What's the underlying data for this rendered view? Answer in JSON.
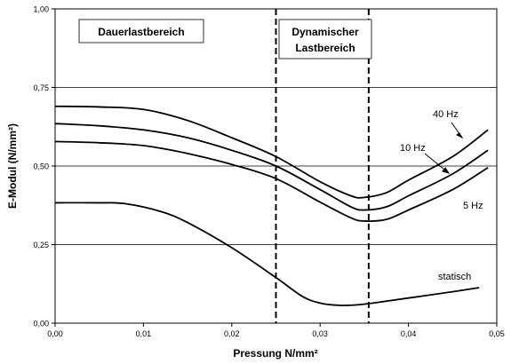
{
  "chart_data": {
    "type": "line",
    "xlabel": "Pressung N/mm²",
    "ylabel": "E-Modul (N/mm²)",
    "xlim": [
      0.0,
      0.05
    ],
    "ylim": [
      0.0,
      1.0
    ],
    "x_ticks": [
      0.0,
      0.01,
      0.02,
      0.03,
      0.04,
      0.05
    ],
    "x_tick_labels": [
      "0,00",
      "0,01",
      "0,02",
      "0,03",
      "0,04",
      "0,05"
    ],
    "y_ticks": [
      0.0,
      0.25,
      0.5,
      0.75,
      1.0
    ],
    "y_tick_labels": [
      "0,00",
      "0,25",
      "0,50",
      "0,75",
      "1,00"
    ],
    "grid": "horizontal",
    "series": [
      {
        "name": "40 Hz",
        "x": [
          0.0,
          0.005,
          0.01,
          0.015,
          0.02,
          0.025,
          0.03,
          0.0335,
          0.035,
          0.0375,
          0.04,
          0.045,
          0.049
        ],
        "y": [
          0.69,
          0.688,
          0.68,
          0.645,
          0.59,
          0.53,
          0.45,
          0.405,
          0.4,
          0.415,
          0.455,
          0.53,
          0.615
        ]
      },
      {
        "name": "10 Hz",
        "x": [
          0.0,
          0.005,
          0.01,
          0.015,
          0.02,
          0.025,
          0.03,
          0.0335,
          0.035,
          0.0375,
          0.04,
          0.045,
          0.049
        ],
        "y": [
          0.635,
          0.628,
          0.615,
          0.59,
          0.55,
          0.5,
          0.425,
          0.37,
          0.36,
          0.37,
          0.405,
          0.475,
          0.55
        ]
      },
      {
        "name": "5 Hz",
        "x": [
          0.0,
          0.005,
          0.01,
          0.015,
          0.02,
          0.025,
          0.03,
          0.0335,
          0.035,
          0.0375,
          0.04,
          0.045,
          0.049
        ],
        "y": [
          0.578,
          0.574,
          0.565,
          0.54,
          0.505,
          0.46,
          0.385,
          0.335,
          0.325,
          0.33,
          0.36,
          0.425,
          0.495
        ]
      },
      {
        "name": "statisch",
        "x": [
          0.0,
          0.005,
          0.008,
          0.012,
          0.015,
          0.02,
          0.025,
          0.028,
          0.03,
          0.032,
          0.034,
          0.036,
          0.04,
          0.045,
          0.048
        ],
        "y": [
          0.383,
          0.383,
          0.38,
          0.355,
          0.32,
          0.24,
          0.145,
          0.085,
          0.064,
          0.057,
          0.058,
          0.064,
          0.08,
          0.1,
          0.113
        ]
      }
    ],
    "vertical_lines": [
      {
        "x": 0.025,
        "style": "dashed"
      },
      {
        "x": 0.0355,
        "style": "dashed"
      }
    ],
    "region_labels": [
      {
        "lines": [
          "Dauerlastbereich"
        ],
        "boxed": true
      },
      {
        "lines": [
          "Dynamischer",
          "Lastbereich"
        ],
        "boxed": true
      }
    ],
    "series_labels": [
      {
        "text": "40 Hz",
        "arrow": true
      },
      {
        "text": "10 Hz",
        "arrow": true
      },
      {
        "text": "5 Hz",
        "arrow": false
      },
      {
        "text": "statisch",
        "arrow": false
      }
    ]
  }
}
